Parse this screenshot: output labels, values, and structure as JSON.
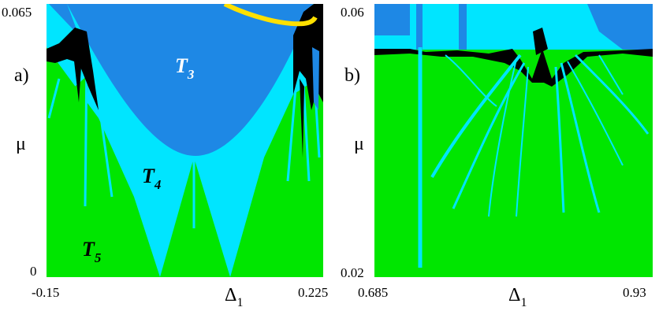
{
  "panels": [
    {
      "label": "a)",
      "y_axis": {
        "symbol": "μ",
        "min_label": "0",
        "max_label": "0.065"
      },
      "x_axis": {
        "symbol": "Δ",
        "subscript": "1",
        "min_label": "-0.15",
        "max_label": "0.225"
      },
      "region_labels": [
        {
          "base": "T",
          "sub": "3"
        },
        {
          "base": "T",
          "sub": "4"
        },
        {
          "base": "T",
          "sub": "5"
        }
      ]
    },
    {
      "label": "b)",
      "y_axis": {
        "symbol": "μ",
        "min_label": "0.02",
        "max_label": "0.06"
      },
      "x_axis": {
        "symbol": "Δ",
        "subscript": "1",
        "min_label": "0.685",
        "max_label": "0.93"
      }
    }
  ],
  "colors": {
    "dark_blue": "#1E88E5",
    "light_blue": "#00E5FF",
    "green": "#00E600",
    "black": "#000000",
    "yellow": "#FFE000"
  }
}
